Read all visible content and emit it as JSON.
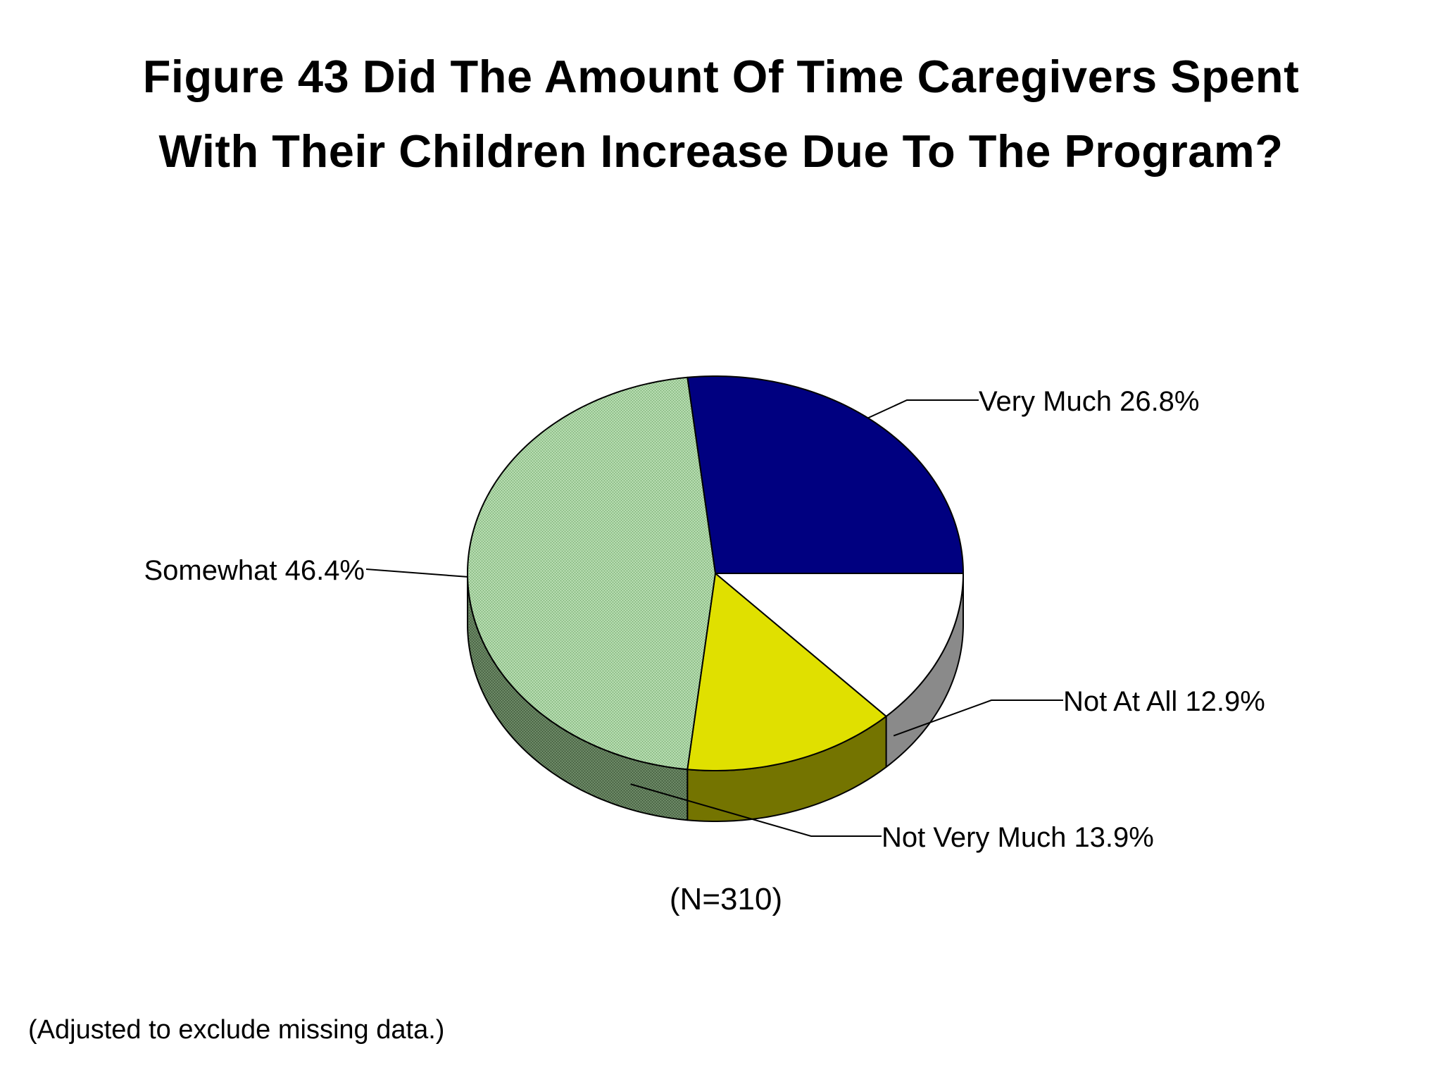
{
  "chart_data": {
    "type": "pie",
    "title_line_1": "Figure 43  Did The Amount Of Time Caregivers Spent",
    "title_line_2": "With Their Children Increase Due To The Program?",
    "sample_size_label": "(N=310)",
    "footnote": "(Adjusted to exclude missing data.)",
    "slices": [
      {
        "label": "Very Much",
        "value": 26.8,
        "display": "Very Much 26.8%",
        "color": "#000080",
        "side_color": "#00004d",
        "pattern": false
      },
      {
        "label": "Not At All",
        "value": 12.9,
        "display": "Not At All 12.9%",
        "color": "#ffffff",
        "side_color": "#8a8a8a",
        "pattern": false
      },
      {
        "label": "Not Very Much",
        "value": 13.9,
        "display": "Not Very Much 13.9%",
        "color": "#e0e000",
        "side_color": "#747400",
        "pattern": false
      },
      {
        "label": "Somewhat",
        "value": 46.4,
        "display": "Somewhat 46.4%",
        "color": "#a6d1a0",
        "side_color": "#5e7a58",
        "pattern": true
      }
    ],
    "legend": "none",
    "style": "3d-pie"
  }
}
